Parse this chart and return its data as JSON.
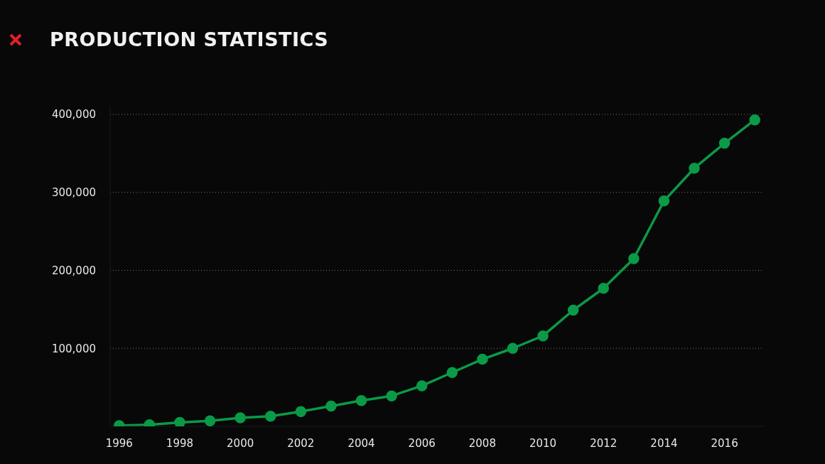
{
  "chart_data": {
    "type": "line",
    "title": "PRODUCTION STATISTICS",
    "x": [
      1996,
      1997,
      1998,
      1999,
      2000,
      2001,
      2002,
      2003,
      2004,
      2005,
      2006,
      2007,
      2008,
      2009,
      2010,
      2011,
      2012,
      2013,
      2014,
      2015,
      2016,
      2017
    ],
    "series": [
      {
        "color": "#0a9a48",
        "values": [
          1000,
          2000,
          5000,
          7000,
          11000,
          13000,
          19000,
          26000,
          33000,
          39000,
          52000,
          69000,
          86000,
          100000,
          116000,
          149000,
          177000,
          215000,
          289000,
          331000,
          363000,
          393000
        ]
      }
    ],
    "xlim": [
      1995.7,
      2017.3
    ],
    "xticks": [
      1996,
      1998,
      2000,
      2002,
      2004,
      2006,
      2008,
      2010,
      2012,
      2014,
      2016
    ],
    "ylim": [
      0,
      410000
    ],
    "yticks": [
      {
        "value": 100000,
        "label": "100,000"
      },
      {
        "value": 200000,
        "label": "200,000"
      },
      {
        "value": 300000,
        "label": "300,000"
      },
      {
        "value": 400000,
        "label": "400,000"
      }
    ],
    "grid": "y",
    "legend": false,
    "marker": "circle",
    "line_style": "solid"
  }
}
